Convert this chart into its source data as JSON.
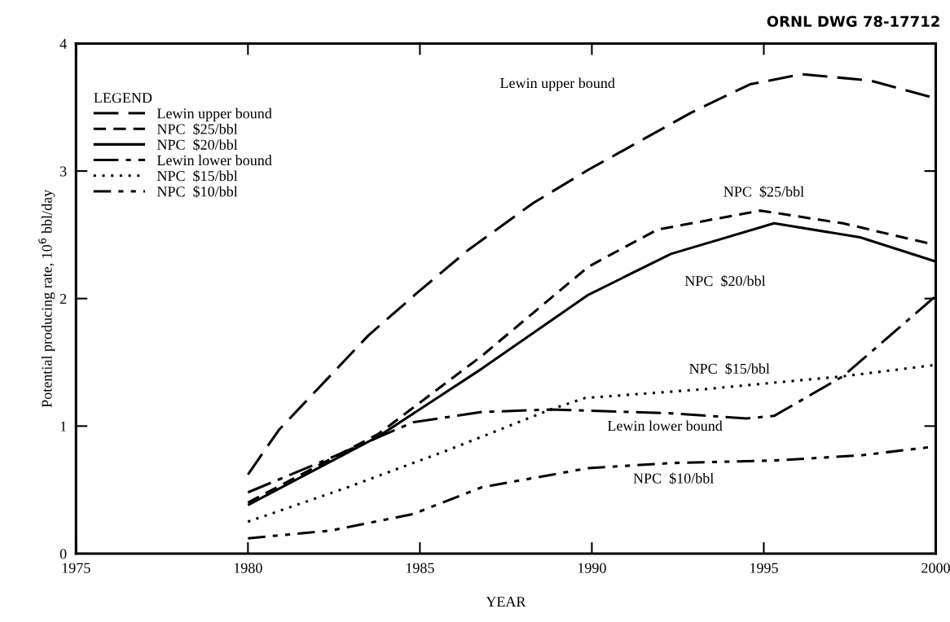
{
  "chart_data": {
    "type": "line",
    "xlabel": "YEAR",
    "ylabel": "Potential producing rate, 10$^{6}$ bbl/day",
    "legend_title": "LEGEND",
    "legend": "top left",
    "grid": false,
    "marker": "none",
    "xlim": [
      1975,
      2000
    ],
    "xticks": [
      1975,
      1980,
      1985,
      1990,
      1995,
      2000
    ],
    "ylim": [
      0,
      4
    ],
    "yticks": [
      0,
      1,
      2,
      3,
      4
    ],
    "series": [
      {
        "name": "Lewin upper bound",
        "color": "#000000",
        "line_style": "longdash",
        "x": [
          1980,
          1980.9,
          1983.5,
          1984.9,
          1986.4,
          1988.3,
          1989.9,
          1992.9,
          1994.6,
          1996.1,
          1998.1,
          2000
        ],
        "values": [
          0.62,
          0.97,
          1.71,
          2.04,
          2.38,
          2.75,
          3.01,
          3.46,
          3.68,
          3.76,
          3.71,
          3.57
        ]
      },
      {
        "name": "NPC  $25/bbl",
        "color": "#000000",
        "line_style": "dashed",
        "x": [
          1980,
          1983.8,
          1986.8,
          1989.9,
          1991.9,
          1994.9,
          1997.3,
          2000
        ],
        "values": [
          0.4,
          0.94,
          1.55,
          2.25,
          2.54,
          2.69,
          2.59,
          2.42
        ]
      },
      {
        "name": "NPC  $20/bbl",
        "color": "#000000",
        "line_style": "solid",
        "x": [
          1980,
          1983.8,
          1986.8,
          1989.9,
          1992.3,
          1995.3,
          1997.8,
          2000
        ],
        "values": [
          0.38,
          0.92,
          1.45,
          2.03,
          2.35,
          2.59,
          2.48,
          2.29
        ]
      },
      {
        "name": "Lewin lower bound",
        "color": "#000000",
        "line_style": "dashdot",
        "x": [
          1980,
          1982.4,
          1984.8,
          1986.8,
          1988.8,
          1992.3,
          1994.5,
          1995.3,
          1997.3,
          2000
        ],
        "values": [
          0.48,
          0.75,
          1.03,
          1.11,
          1.13,
          1.1,
          1.06,
          1.08,
          1.39,
          2.02
        ]
      },
      {
        "name": "NPC  $15/bbl",
        "color": "#000000",
        "line_style": "dotted",
        "x": [
          1980,
          1982.9,
          1985.8,
          1988.8,
          1989.8,
          1993.3,
          1997.3,
          2000
        ],
        "values": [
          0.25,
          0.52,
          0.81,
          1.13,
          1.22,
          1.29,
          1.39,
          1.48
        ]
      },
      {
        "name": "NPC  $10/bbl",
        "color": "#000000",
        "line_style": "dashdotdot",
        "x": [
          1980,
          1982.4,
          1984.8,
          1986.8,
          1989.9,
          1992.3,
          1995.3,
          1997.8,
          2000
        ],
        "values": [
          0.12,
          0.18,
          0.31,
          0.52,
          0.67,
          0.71,
          0.73,
          0.77,
          0.84
        ]
      }
    ],
    "annotations": [
      "Lewin upper bound",
      "NPC  $25/bbl",
      "NPC  $20/bbl",
      "NPC  $15/bbl",
      "Lewin lower bound",
      "NPC  $10/bbl",
      "ORNL DWG 78-17712"
    ]
  }
}
